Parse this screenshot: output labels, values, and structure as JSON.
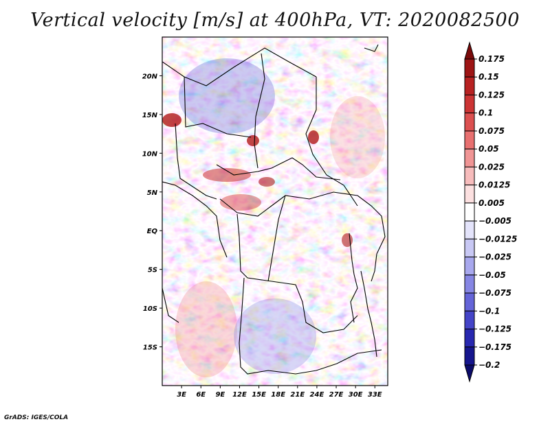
{
  "title": "Vertical velocity [m/s] at 400hPa, VT: 2020082500",
  "credit": "GrADS: IGES/COLA",
  "map": {
    "lon_range": [
      0,
      35
    ],
    "lat_range": [
      -20,
      25
    ],
    "lat_labels": [
      "20N",
      "15N",
      "10N",
      "5N",
      "EQ",
      "5S",
      "10S",
      "15S"
    ],
    "lon_labels": [
      "3E",
      "6E",
      "9E",
      "12E",
      "15E",
      "18E",
      "21E",
      "24E",
      "27E",
      "30E",
      "33E"
    ]
  },
  "colorbar": {
    "labels": [
      "0.175",
      "0.15",
      "0.125",
      "0.1",
      "0.075",
      "0.05",
      "0.025",
      "0.0125",
      "0.005",
      "−0.005",
      "−0.0125",
      "−0.025",
      "−0.05",
      "−0.075",
      "−0.1",
      "−0.125",
      "−0.175",
      "−0.2"
    ],
    "colors": [
      "#7a0a0a",
      "#9e1515",
      "#b82222",
      "#cc3434",
      "#dc5050",
      "#e87070",
      "#f09595",
      "#f7bcbc",
      "#fce0e0",
      "#ffffff",
      "#e4e4fb",
      "#c8c8f4",
      "#a8a8ee",
      "#8686e4",
      "#6464d8",
      "#4444c8",
      "#2828b0",
      "#16168e",
      "#0b0b6a"
    ]
  }
}
